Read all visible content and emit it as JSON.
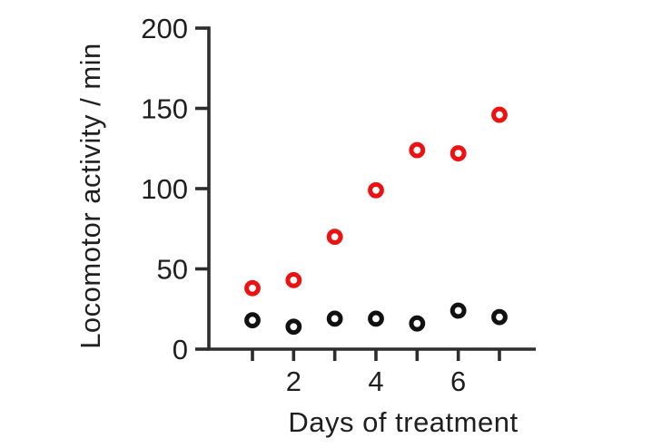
{
  "chart_data": {
    "type": "scatter",
    "title": "",
    "xlabel": "Days of treatment",
    "ylabel": "Locomotor activity / min",
    "x": [
      1,
      2,
      3,
      4,
      5,
      6,
      7
    ],
    "series": [
      {
        "name": "black-circles",
        "marker": "open-circle",
        "color": "#111111",
        "values": [
          18,
          14,
          19,
          19,
          16,
          24,
          20
        ]
      },
      {
        "name": "red-circles",
        "marker": "open-circle",
        "color": "#ee1111",
        "values": [
          38,
          43,
          70,
          99,
          124,
          122,
          146
        ]
      }
    ],
    "y_ticks": [
      0,
      50,
      100,
      150,
      200
    ],
    "y_tick_labels": [
      "0",
      "50",
      "100",
      "150",
      "200"
    ],
    "x_tick_values": [
      2,
      4,
      6
    ],
    "x_tick_labels": [
      "2",
      "4",
      "6"
    ],
    "ylim": [
      0,
      200
    ],
    "xlim": [
      0,
      7.9
    ],
    "grid": false,
    "legend": false,
    "colors": {
      "axis": "#2d2d2d",
      "text": "#1f1f1f",
      "background": "#ffffff",
      "series_red": "#ee1111",
      "series_black": "#111111"
    }
  }
}
